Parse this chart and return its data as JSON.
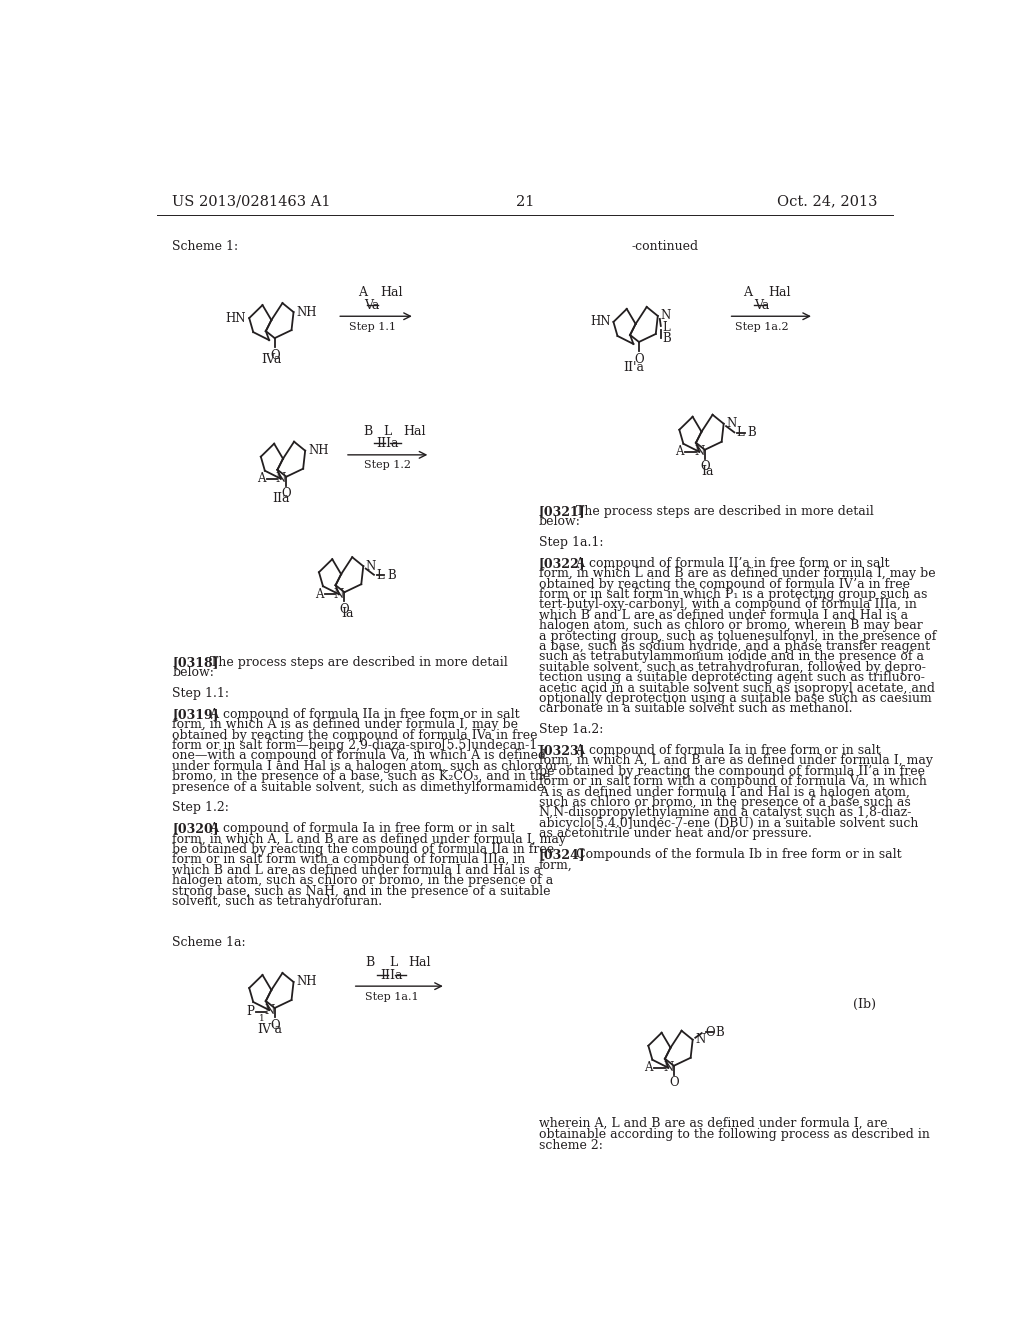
{
  "page_number": "21",
  "patent_number": "US 2013/0281463 A1",
  "date": "Oct. 24, 2013",
  "background_color": "#ffffff",
  "text_color": "#231f20",
  "scheme1_label": "Scheme 1:",
  "scheme1a_label": "Scheme 1a:",
  "continued_label": "-continued",
  "body_text_left": [
    [
      "[0318]",
      "   The process steps are described in more detail"
    ],
    [
      "",
      "below:"
    ],
    [
      "",
      ""
    ],
    [
      "",
      "Step 1.1:"
    ],
    [
      "",
      ""
    ],
    [
      "[0319]",
      "   A compound of formula IIa in free form or in salt"
    ],
    [
      "",
      "form, in which A is as defined under formula I, may be"
    ],
    [
      "",
      "obtained by reacting the compound of formula IVa in free"
    ],
    [
      "",
      "form or in salt form—being 2,9-diaza-spiro[5.5]undecan-1-"
    ],
    [
      "",
      "one—with a compound of formula Va, in which A is defined"
    ],
    [
      "",
      "under formula I and Hal is a halogen atom, such as chloro or"
    ],
    [
      "",
      "bromo, in the presence of a base, such as K₂CO₃, and in the"
    ],
    [
      "",
      "presence of a suitable solvent, such as dimethylformamide."
    ],
    [
      "",
      ""
    ],
    [
      "",
      "Step 1.2:"
    ],
    [
      "",
      ""
    ],
    [
      "[0320]",
      "   A compound of formula Ia in free form or in salt"
    ],
    [
      "",
      "form, in which A, L and B are as defined under formula I, may"
    ],
    [
      "",
      "be obtained by reacting the compound of formula IIa in free"
    ],
    [
      "",
      "form or in salt form with a compound of formula IIIa, in"
    ],
    [
      "",
      "which B and L are as defined under formula I and Hal is a"
    ],
    [
      "",
      "halogen atom, such as chloro or bromo, in the presence of a"
    ],
    [
      "",
      "strong base, such as NaH, and in the presence of a suitable"
    ],
    [
      "",
      "solvent, such as tetrahydrofuran."
    ]
  ],
  "body_text_right": [
    [
      "[0321]",
      "   The process steps are described in more detail"
    ],
    [
      "",
      "below:"
    ],
    [
      "",
      ""
    ],
    [
      "",
      "Step 1a.1:"
    ],
    [
      "",
      ""
    ],
    [
      "[0322]",
      "   A compound of formula II’a in free form or in salt"
    ],
    [
      "",
      "form, in which L and B are as defined under formula I, may be"
    ],
    [
      "",
      "obtained by reacting the compound of formula IV’a in free"
    ],
    [
      "",
      "form or in salt form in which P₁ is a protecting group such as"
    ],
    [
      "",
      "tert-butyl-oxy-carbonyl, with a compound of formula IIIa, in"
    ],
    [
      "",
      "which B and L are as defined under formula I and Hal is a"
    ],
    [
      "",
      "halogen atom, such as chloro or bromo, wherein B may bear"
    ],
    [
      "",
      "a protecting group, such as toluenesulfonyl, in the presence of"
    ],
    [
      "",
      "a base, such as sodium hydride, and a phase transfer reagent"
    ],
    [
      "",
      "such as tetrabutylammonium iodide and in the presence of a"
    ],
    [
      "",
      "suitable solvent, such as tetrahydrofuran, followed by depro-"
    ],
    [
      "",
      "tection using a suitable deprotecting agent such as trifluoro-"
    ],
    [
      "",
      "acetic acid in a suitable solvent such as isopropyl acetate, and"
    ],
    [
      "",
      "optionally deprotection using a suitable base such as caesium"
    ],
    [
      "",
      "carbonate in a suitable solvent such as methanol."
    ],
    [
      "",
      ""
    ],
    [
      "",
      "Step 1a.2:"
    ],
    [
      "",
      ""
    ],
    [
      "[0323]",
      "   A compound of formula Ia in free form or in salt"
    ],
    [
      "",
      "form, in which A, L and B are as defined under formula I, may"
    ],
    [
      "",
      "be obtained by reacting the compound of formula II’a in free"
    ],
    [
      "",
      "form or in salt form with a compound of formula Va, in which"
    ],
    [
      "",
      "A is as defined under formula I and Hal is a halogen atom,"
    ],
    [
      "",
      "such as chloro or bromo, in the presence of a base such as"
    ],
    [
      "",
      "N,N-diisopropylethylamine and a catalyst such as 1,8-diaz-"
    ],
    [
      "",
      "abicyclo[5.4.0]undec-7-ene (DBU) in a suitable solvent such"
    ],
    [
      "",
      "as acetonitrile under heat and/or pressure."
    ],
    [
      "",
      ""
    ],
    [
      "[0324]",
      "   Compounds of the formula Ib in free form or in salt"
    ],
    [
      "",
      "form,"
    ]
  ],
  "formula_lb_label": "(Ib)",
  "bottom_text_right": [
    "wherein A, L and B are as defined under formula I, are",
    "obtainable according to the following process as described in",
    "scheme 2:"
  ]
}
